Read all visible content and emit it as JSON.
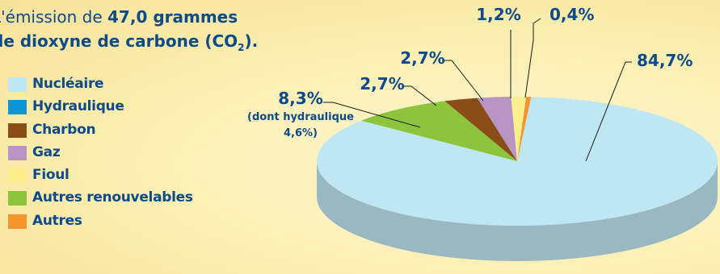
{
  "header": {
    "line1_prefix": "L'émission de ",
    "line1_bold": "47,0 grammes",
    "line2_prefix": "de dioxyne de carbone (CO",
    "line2_sub": "2",
    "line2_suffix": ")."
  },
  "legend": [
    {
      "label": "Nucléaire",
      "color": "#bfe6f3"
    },
    {
      "label": "Hydraulique",
      "color": "#0d94d2"
    },
    {
      "label": "Charbon",
      "color": "#8b4d18"
    },
    {
      "label": "Gaz",
      "color": "#b895c4"
    },
    {
      "label": "Fioul",
      "color": "#fbf08c"
    },
    {
      "label": "Autres renouvelables",
      "color": "#8dc43e"
    },
    {
      "label": "Autres",
      "color": "#f4942a"
    }
  ],
  "chart_data": {
    "type": "pie",
    "unit": "%",
    "slices": [
      {
        "category": "Nucléaire",
        "value": 84.7,
        "label": "84,7%",
        "color": "#bfe6f3"
      },
      {
        "category": "Autres renouvelables",
        "value": 8.3,
        "label": "8,3%",
        "sublabel": [
          "(dont hydraulique",
          "4,6%)"
        ],
        "color": "#8dc43e"
      },
      {
        "category": "Charbon",
        "value": 2.7,
        "label": "2,7%",
        "color": "#8b4d18"
      },
      {
        "category": "Gaz",
        "value": 2.7,
        "label": "2,7%",
        "color": "#b895c4"
      },
      {
        "category": "Fioul",
        "value": 1.2,
        "label": "1,2%",
        "color": "#fbf08c"
      },
      {
        "category": "Autres",
        "value": 0.4,
        "label": "0,4%",
        "color": "#f4942a"
      }
    ]
  }
}
